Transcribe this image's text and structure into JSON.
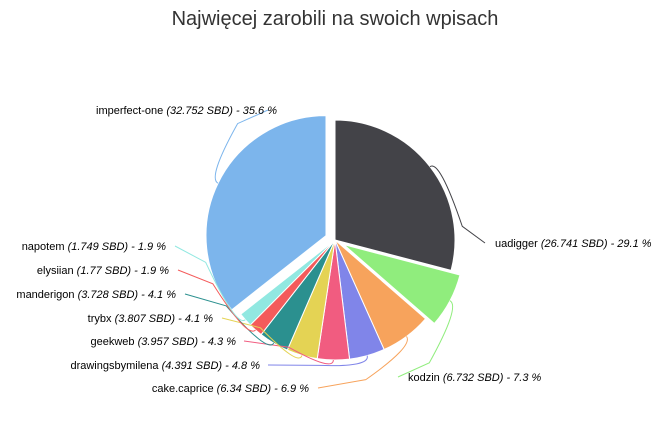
{
  "chart_data": {
    "type": "pie",
    "title": "Najwięcej zarobili na swoich wpisach",
    "unit": "SBD",
    "slices": [
      {
        "name": "imperfect-one",
        "value": 32.752,
        "value_text": "32.752 SBD",
        "percent_text": "35.6 %",
        "color": "#7cb5ec",
        "exploded": true
      },
      {
        "name": "uadigger",
        "value": 26.741,
        "value_text": "26.741 SBD",
        "percent_text": "29.1 %",
        "color": "#434348",
        "exploded": false
      },
      {
        "name": "kodzin",
        "value": 6.732,
        "value_text": "6.732 SBD",
        "percent_text": "7.3 %",
        "color": "#90ed7d",
        "exploded": true
      },
      {
        "name": "cake.caprice",
        "value": 6.34,
        "value_text": "6.34 SBD",
        "percent_text": "6.9 %",
        "color": "#f7a35c",
        "exploded": false
      },
      {
        "name": "drawingsbymilena",
        "value": 4.391,
        "value_text": "4.391 SBD",
        "percent_text": "4.8 %",
        "color": "#8085e9",
        "exploded": false
      },
      {
        "name": "geekweb",
        "value": 3.957,
        "value_text": "3.957 SBD",
        "percent_text": "4.3 %",
        "color": "#f15c80",
        "exploded": false
      },
      {
        "name": "trybx",
        "value": 3.807,
        "value_text": "3.807 SBD",
        "percent_text": "4.1 %",
        "color": "#e4d354",
        "exploded": false
      },
      {
        "name": "manderigon",
        "value": 3.728,
        "value_text": "3.728 SBD",
        "percent_text": "4.1 %",
        "color": "#2b908f",
        "exploded": false
      },
      {
        "name": "elysiian",
        "value": 1.77,
        "value_text": "1.77 SBD",
        "percent_text": "1.9 %",
        "color": "#f45b5b",
        "exploded": false
      },
      {
        "name": "napotem",
        "value": 1.749,
        "value_text": "1.749 SBD",
        "percent_text": "1.9 %",
        "color": "#91e8e1",
        "exploded": false
      }
    ]
  }
}
